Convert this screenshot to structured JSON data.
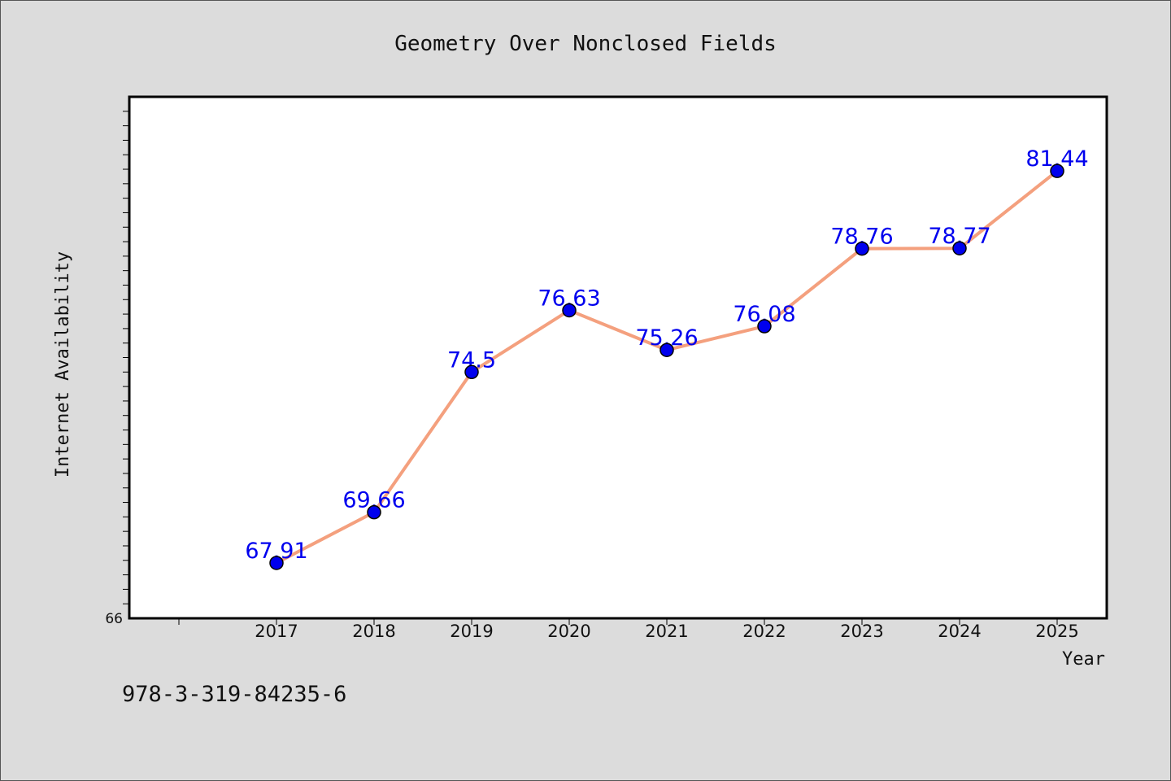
{
  "chart_data": {
    "type": "line",
    "title": "Geometry Over Nonclosed Fields",
    "xlabel": "Year",
    "ylabel": "Internet Availability",
    "x": [
      "2017",
      "2018",
      "2019",
      "2020",
      "2021",
      "2022",
      "2023",
      "2024",
      "2025"
    ],
    "series": [
      {
        "values": [
          67.91,
          69.66,
          74.5,
          76.63,
          75.26,
          76.08,
          78.76,
          78.77,
          81.44
        ],
        "labels": [
          "67.91",
          "69.66",
          "74.5",
          "76.63",
          "75.26",
          "76.08",
          "78.76",
          "78.77",
          "81.44"
        ],
        "color": "#f4a07e",
        "marker_color": "#0000ee"
      }
    ],
    "ylim": [
      66,
      84
    ],
    "y_min_label": "66",
    "grid": false,
    "legend": "none"
  },
  "footnote": "978-3-319-84235-6",
  "colors": {
    "background": "#dcdcdc",
    "plot_area": "#ffffff",
    "data_label": "#0000ee"
  }
}
